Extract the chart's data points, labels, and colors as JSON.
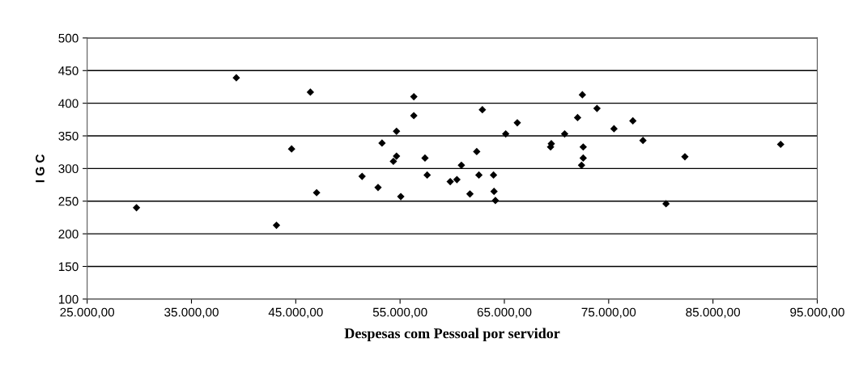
{
  "chart_data": {
    "type": "scatter",
    "xlabel": "Despesas com Pessoal por servidor",
    "ylabel": "I G C",
    "x": [
      29730,
      39300,
      46400,
      44600,
      47000,
      43150,
      51360,
      52890,
      53270,
      54360,
      54660,
      54660,
      55070,
      56320,
      56320,
      57390,
      57600,
      59810,
      60450,
      60880,
      61700,
      62350,
      62560,
      62890,
      63960,
      64010,
      64140,
      65130,
      66240,
      69430,
      69500,
      70780,
      72480,
      72020,
      73880,
      75510,
      77320,
      78290,
      72560,
      72560,
      72400,
      80500,
      82310,
      91490
    ],
    "values": [
      240,
      439,
      417,
      330,
      263,
      213,
      288,
      271,
      339,
      311,
      319,
      357,
      257,
      410,
      381,
      316,
      290,
      280,
      283,
      305,
      261,
      326,
      290,
      390,
      290,
      265,
      251,
      353,
      370,
      333,
      338,
      353,
      413,
      378,
      392,
      361,
      373,
      343,
      333,
      316,
      305,
      246,
      318,
      337
    ],
    "color": "#000000",
    "marker": "diamond",
    "grid": "y",
    "xlim": [
      25000,
      95000
    ],
    "xticks": [
      {
        "value": 25000,
        "label": "25.000,00"
      },
      {
        "value": 35000,
        "label": "35.000,00"
      },
      {
        "value": 45000,
        "label": "45.000,00"
      },
      {
        "value": 55000,
        "label": "55.000,00"
      },
      {
        "value": 65000,
        "label": "65.000,00"
      },
      {
        "value": 75000,
        "label": "75.000,00"
      },
      {
        "value": 85000,
        "label": "85.000,00"
      },
      {
        "value": 95000,
        "label": "95.000,00"
      }
    ],
    "ylim": [
      100,
      500
    ],
    "yticks": [
      100,
      150,
      200,
      250,
      300,
      350,
      400,
      450,
      500
    ]
  }
}
